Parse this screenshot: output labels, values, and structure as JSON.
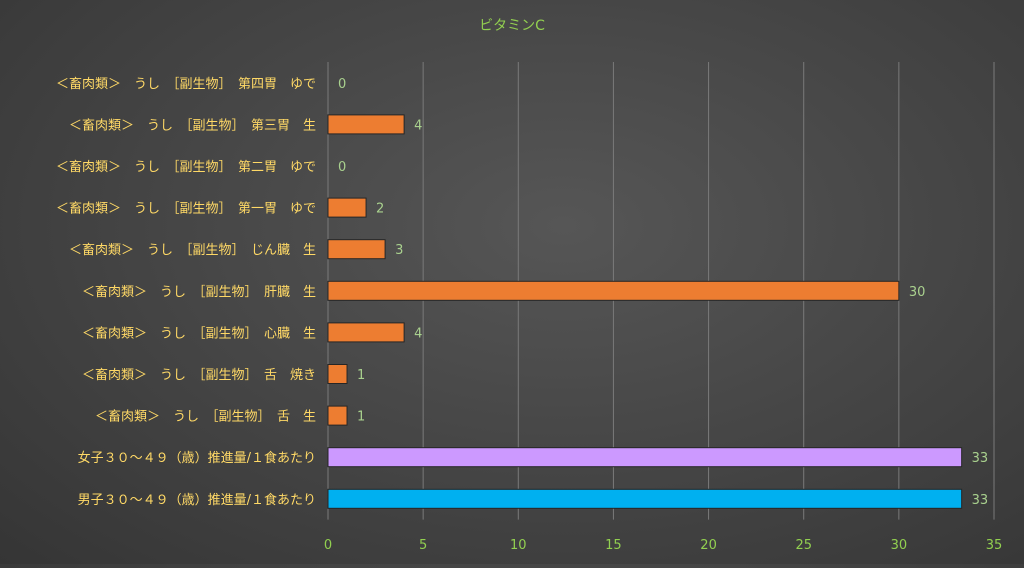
{
  "chart_data": {
    "type": "bar",
    "orientation": "horizontal",
    "title": "ビタミンC",
    "categories": [
      "<畜肉類> うし [副生物] 第四胃 ゆで",
      "<畜肉類> うし [副生物] 第三胃 生",
      "<畜肉類> うし [副生物] 第二胃 ゆで",
      "<畜肉類> うし [副生物] 第一胃 ゆで",
      "<畜肉類> うし [副生物] じん臓 生",
      "<畜肉類> うし [副生物] 肝臓 生",
      "<畜肉類> うし [副生物] 心臓 生",
      "<畜肉類> うし [副生物] 舌 焼き",
      "<畜肉類> うし [副生物] 舌 生",
      "女子３０～４９（歳）推進量/１食あたり",
      "男子３０～４９（歳）推進量/１食あたり"
    ],
    "category_labels": [
      "＜畜肉類＞　うし　［副生物］　第四胃　ゆで",
      "＜畜肉類＞　うし　［副生物］　第三胃　生",
      "＜畜肉類＞　うし　［副生物］　第二胃　ゆで",
      "＜畜肉類＞　うし　［副生物］　第一胃　ゆで",
      "＜畜肉類＞　うし　［副生物］　じん臓　生",
      "＜畜肉類＞　うし　［副生物］　肝臓　生",
      "＜畜肉類＞　うし　［副生物］　心臓　生",
      "＜畜肉類＞　うし　［副生物］　舌　焼き",
      "＜畜肉類＞　うし　［副生物］　舌　生",
      "女子３０～４９（歳）推進量/１食あたり",
      "男子３０～４９（歳）推進量/１食あたり"
    ],
    "values": [
      0,
      4,
      0,
      2,
      3,
      30,
      4,
      1,
      1,
      33.3,
      33.3
    ],
    "value_labels": [
      "0",
      "4",
      "0",
      "2",
      "3",
      "30",
      "4",
      "1",
      "1",
      "33",
      "33"
    ],
    "bar_colors": [
      "#ED7D31",
      "#ED7D31",
      "#ED7D31",
      "#ED7D31",
      "#ED7D31",
      "#ED7D31",
      "#ED7D31",
      "#ED7D31",
      "#ED7D31",
      "#CC99FF",
      "#00B0F0"
    ],
    "xlim": [
      0,
      35
    ],
    "x_ticks": [
      0,
      5,
      10,
      15,
      20,
      25,
      30,
      35
    ],
    "grid": true,
    "legend": "none",
    "colors": {
      "title": "#92D050",
      "category_text": "#FFD966",
      "tick_text": "#92D050",
      "value_label": "#A9D18E",
      "gridline": "#7A7A7A"
    }
  }
}
